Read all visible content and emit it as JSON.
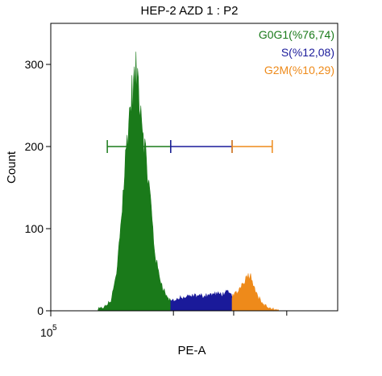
{
  "chart_data": {
    "type": "histogram",
    "title": "HEP-2 AZD 1 : P2",
    "xlabel": "PE-A",
    "ylabel": "Count",
    "x_tick_label_base": "10",
    "x_tick_label_exp": "5",
    "y_ticks": [
      0,
      100,
      200,
      300
    ],
    "ylim": [
      0,
      350
    ],
    "xlim": [
      0,
      1
    ],
    "x_minor_ticks": [
      0.4275,
      0.6375,
      0.8225
    ],
    "legend_position": "top-right",
    "grid": false,
    "gates": [
      {
        "name": "G0G1",
        "label": "G0G1(%76,74)",
        "color": "#1a7a1a",
        "x_start": 0.197,
        "x_end": 0.418,
        "y": 200
      },
      {
        "name": "S",
        "label": "S(%12,08)",
        "color": "#1a1a9a",
        "x_start": 0.418,
        "x_end": 0.632,
        "y": 200
      },
      {
        "name": "G2M",
        "label": "G2M(%10,29)",
        "color": "#ee8a1a",
        "x_start": 0.632,
        "x_end": 0.772,
        "y": 200
      }
    ],
    "histogram_profile": {
      "x": [
        0.17,
        0.19,
        0.21,
        0.23,
        0.245,
        0.26,
        0.27,
        0.28,
        0.29,
        0.3,
        0.305,
        0.31,
        0.32,
        0.33,
        0.34,
        0.35,
        0.36,
        0.37,
        0.38,
        0.39,
        0.4,
        0.41,
        0.418,
        0.44,
        0.47,
        0.5,
        0.53,
        0.56,
        0.59,
        0.62,
        0.632,
        0.65,
        0.67,
        0.69,
        0.7,
        0.71,
        0.72,
        0.74,
        0.76,
        0.78,
        0.8
      ],
      "y": [
        2,
        5,
        12,
        45,
        110,
        180,
        225,
        255,
        275,
        285,
        280,
        265,
        230,
        190,
        160,
        125,
        80,
        55,
        40,
        30,
        20,
        14,
        12,
        14,
        16,
        18,
        18,
        20,
        20,
        22,
        18,
        22,
        35,
        45,
        40,
        30,
        18,
        8,
        3,
        1,
        0
      ]
    }
  }
}
